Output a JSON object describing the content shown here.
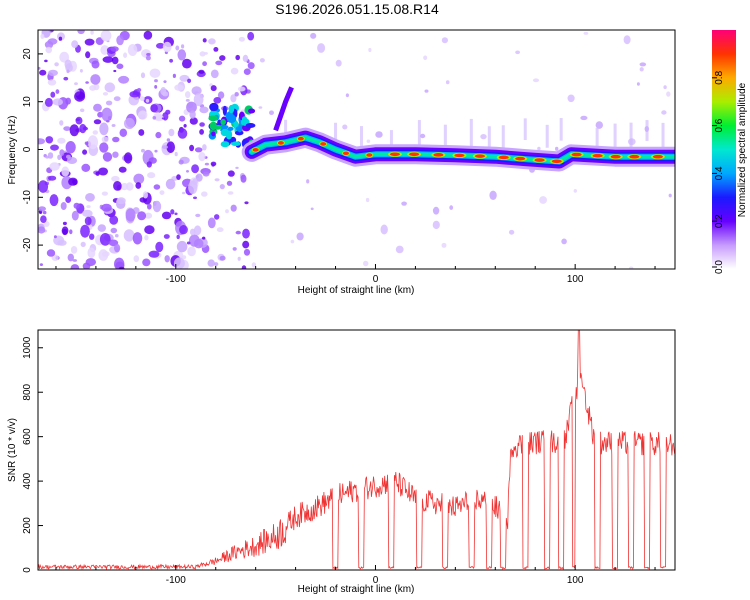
{
  "title": "S196.2026.051.15.08.R14",
  "chart_data": [
    {
      "type": "heatmap",
      "xlabel": "Height of straight line (km)",
      "ylabel": "Frequency (Hz)",
      "xlim": [
        -169,
        150
      ],
      "ylim": [
        -25,
        25
      ],
      "xticks": [
        -100,
        0,
        100
      ],
      "yticks": [
        -20,
        -10,
        0,
        10,
        20
      ],
      "colorbar": {
        "label": "Normalized spectral amplitude",
        "range": [
          0,
          1
        ],
        "ticks": [
          "0.0",
          "0.2",
          "0.4",
          "0.6",
          "0.8"
        ]
      },
      "ridge": [
        {
          "x": -62,
          "f": -0.5
        },
        {
          "x": -55,
          "f": 1.0
        },
        {
          "x": -45,
          "f": 1.5
        },
        {
          "x": -35,
          "f": 2.5
        },
        {
          "x": -28,
          "f": 1.5
        },
        {
          "x": -20,
          "f": 0.0
        },
        {
          "x": -10,
          "f": -1.5
        },
        {
          "x": 0,
          "f": -1.0
        },
        {
          "x": 20,
          "f": -1.0
        },
        {
          "x": 40,
          "f": -1.2
        },
        {
          "x": 60,
          "f": -1.5
        },
        {
          "x": 75,
          "f": -2.0
        },
        {
          "x": 92,
          "f": -2.5
        },
        {
          "x": 98,
          "f": -1.0
        },
        {
          "x": 120,
          "f": -1.5
        },
        {
          "x": 150,
          "f": -1.5
        }
      ]
    },
    {
      "type": "line",
      "xlabel": "Height of straight line (km)",
      "ylabel": "SNR (10 * v/v)",
      "xlim": [
        -169,
        150
      ],
      "ylim": [
        0,
        1080
      ],
      "xticks": [
        -100,
        0,
        100
      ],
      "yticks": [
        0,
        200,
        400,
        600,
        800,
        1000
      ],
      "color": "#ef3333",
      "series": [
        {
          "segments": [
            {
              "x": -169,
              "y": 15
            },
            {
              "x": -90,
              "y": 15
            },
            {
              "x": -80,
              "y": 40
            },
            {
              "x": -70,
              "y": 80
            },
            {
              "x": -60,
              "y": 110
            },
            {
              "x": -50,
              "y": 150
            },
            {
              "x": -40,
              "y": 240
            },
            {
              "x": -30,
              "y": 280
            },
            {
              "x": -20,
              "y": 330
            },
            {
              "x": -10,
              "y": 360
            },
            {
              "x": 0,
              "y": 380
            },
            {
              "x": 10,
              "y": 400
            },
            {
              "x": 20,
              "y": 320
            },
            {
              "x": 30,
              "y": 300
            },
            {
              "x": 40,
              "y": 280
            },
            {
              "x": 50,
              "y": 320
            },
            {
              "x": 60,
              "y": 290
            },
            {
              "x": 66,
              "y": 200
            },
            {
              "x": 68,
              "y": 560
            },
            {
              "x": 80,
              "y": 575
            },
            {
              "x": 95,
              "y": 580
            },
            {
              "x": 102,
              "y": 900
            },
            {
              "x": 110,
              "y": 575
            },
            {
              "x": 130,
              "y": 570
            },
            {
              "x": 150,
              "y": 565
            }
          ],
          "spike": {
            "x": 102,
            "y": 1080
          },
          "dropouts": [
            -20,
            -7,
            8,
            22,
            35,
            48,
            57,
            64,
            75,
            86,
            93,
            100,
            111,
            120,
            128,
            136,
            144
          ]
        }
      ]
    }
  ]
}
